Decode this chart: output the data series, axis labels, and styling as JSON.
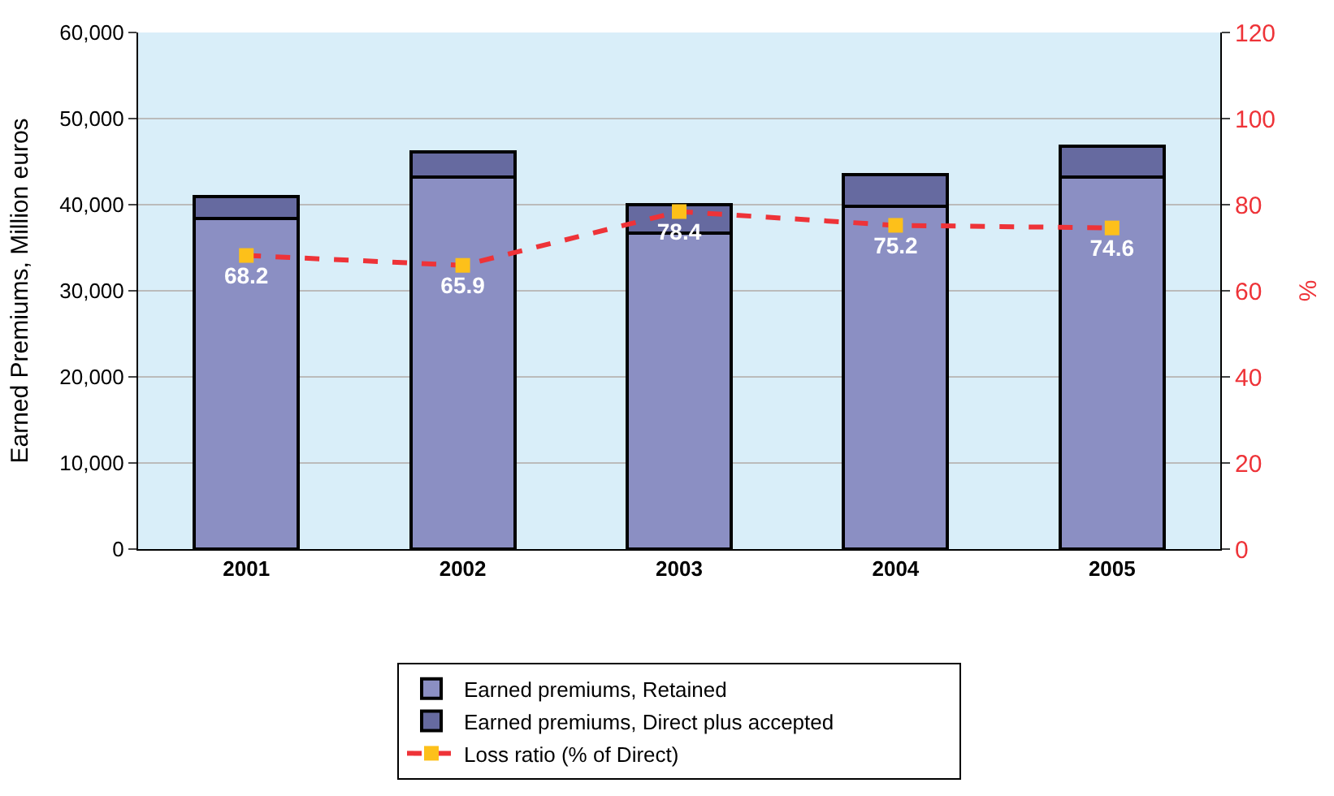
{
  "chart_data": {
    "type": "bar",
    "stacked": true,
    "ylabel": "Earned Premiums, Million euros",
    "y2label": "%",
    "categories": [
      "2001",
      "2002",
      "2003",
      "2004",
      "2005"
    ],
    "series": [
      {
        "name": "Earned premiums, Retained",
        "color": "#8b8fc3",
        "values": [
          38400,
          43200,
          36700,
          39800,
          43200
        ]
      },
      {
        "name": "Earned premiums, Direct plus accepted",
        "color": "#666aa0",
        "values": [
          2500,
          2900,
          3300,
          3700,
          3600
        ]
      },
      {
        "name": "Loss ratio (% of Direct)",
        "type": "line",
        "axis": "y2",
        "color": "#ee3338",
        "marker": "square",
        "line_style": "dashed",
        "values": [
          68.2,
          65.9,
          78.4,
          75.2,
          74.6
        ],
        "value_labels": [
          "68.2",
          "65.9",
          "78.4",
          "75.2",
          "74.6"
        ]
      }
    ],
    "ylim": [
      0,
      60000
    ],
    "yticks": [
      {
        "value": 0,
        "label": "0"
      },
      {
        "value": 10000,
        "label": "10,000"
      },
      {
        "value": 20000,
        "label": "20,000"
      },
      {
        "value": 30000,
        "label": "30,000"
      },
      {
        "value": 40000,
        "label": "40,000"
      },
      {
        "value": 50000,
        "label": "50,000"
      },
      {
        "value": 60000,
        "label": "60,000"
      }
    ],
    "y2lim": [
      0,
      120
    ],
    "y2ticks": [
      0,
      20,
      40,
      60,
      80,
      100,
      120
    ],
    "grid": "y",
    "legend": "bottom"
  }
}
